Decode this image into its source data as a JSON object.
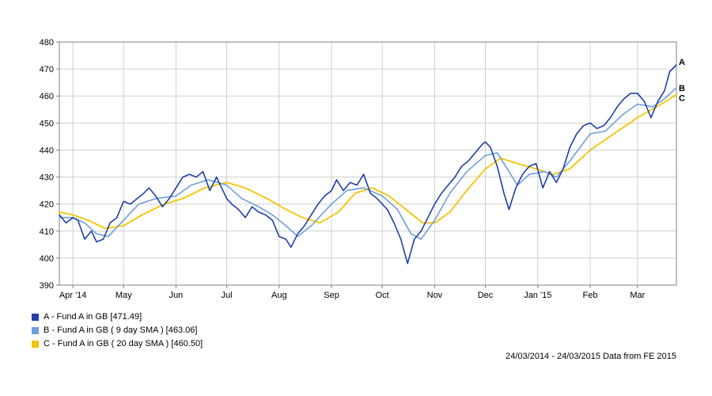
{
  "chart_data": {
    "type": "line",
    "ylim": [
      390,
      480
    ],
    "yticks": [
      390,
      400,
      410,
      420,
      430,
      440,
      450,
      460,
      470,
      480
    ],
    "x_range": [
      "2014-03-24",
      "2015-03-24"
    ],
    "x_ticks": [
      {
        "label": "Apr '14",
        "date": "2014-04-01"
      },
      {
        "label": "May",
        "date": "2014-05-01"
      },
      {
        "label": "Jun",
        "date": "2014-06-01"
      },
      {
        "label": "Jul",
        "date": "2014-07-01"
      },
      {
        "label": "Aug",
        "date": "2014-08-01"
      },
      {
        "label": "Sep",
        "date": "2014-09-01"
      },
      {
        "label": "Oct",
        "date": "2014-10-01"
      },
      {
        "label": "Nov",
        "date": "2014-11-01"
      },
      {
        "label": "Dec",
        "date": "2014-12-01"
      },
      {
        "label": "Jan '15",
        "date": "2015-01-01"
      },
      {
        "label": "Feb",
        "date": "2015-02-01"
      },
      {
        "label": "Mar",
        "date": "2015-03-01"
      }
    ],
    "grid": true,
    "legend_position": "bottom-left",
    "series": [
      {
        "id": "A",
        "end_label": "A",
        "legend": "A - Fund A  in GB [471.49]",
        "color": "#1f3fa6",
        "width": 1.6,
        "points": [
          [
            "2014-03-24",
            416
          ],
          [
            "2014-03-28",
            413
          ],
          [
            "2014-04-01",
            415
          ],
          [
            "2014-04-04",
            414
          ],
          [
            "2014-04-08",
            407
          ],
          [
            "2014-04-12",
            410
          ],
          [
            "2014-04-15",
            406
          ],
          [
            "2014-04-19",
            407
          ],
          [
            "2014-04-23",
            413
          ],
          [
            "2014-04-27",
            415
          ],
          [
            "2014-05-01",
            421
          ],
          [
            "2014-05-05",
            420
          ],
          [
            "2014-05-09",
            422
          ],
          [
            "2014-05-13",
            424
          ],
          [
            "2014-05-16",
            426
          ],
          [
            "2014-05-20",
            423
          ],
          [
            "2014-05-24",
            419
          ],
          [
            "2014-05-28",
            422
          ],
          [
            "2014-06-01",
            426
          ],
          [
            "2014-06-05",
            430
          ],
          [
            "2014-06-09",
            431
          ],
          [
            "2014-06-13",
            430
          ],
          [
            "2014-06-17",
            432
          ],
          [
            "2014-06-21",
            425
          ],
          [
            "2014-06-25",
            430
          ],
          [
            "2014-06-28",
            426
          ],
          [
            "2014-07-01",
            422
          ],
          [
            "2014-07-04",
            420
          ],
          [
            "2014-07-08",
            418
          ],
          [
            "2014-07-12",
            415
          ],
          [
            "2014-07-16",
            419
          ],
          [
            "2014-07-20",
            417
          ],
          [
            "2014-07-24",
            416
          ],
          [
            "2014-07-28",
            414
          ],
          [
            "2014-08-01",
            408
          ],
          [
            "2014-08-05",
            407
          ],
          [
            "2014-08-08",
            404
          ],
          [
            "2014-08-12",
            409
          ],
          [
            "2014-08-16",
            412
          ],
          [
            "2014-08-20",
            416
          ],
          [
            "2014-08-24",
            420
          ],
          [
            "2014-08-28",
            423
          ],
          [
            "2014-09-01",
            425
          ],
          [
            "2014-09-04",
            429
          ],
          [
            "2014-09-08",
            425
          ],
          [
            "2014-09-12",
            428
          ],
          [
            "2014-09-16",
            427
          ],
          [
            "2014-09-20",
            431
          ],
          [
            "2014-09-24",
            424
          ],
          [
            "2014-09-28",
            422
          ],
          [
            "2014-10-01",
            420
          ],
          [
            "2014-10-04",
            418
          ],
          [
            "2014-10-08",
            413
          ],
          [
            "2014-10-12",
            407
          ],
          [
            "2014-10-16",
            398
          ],
          [
            "2014-10-20",
            407
          ],
          [
            "2014-10-24",
            410
          ],
          [
            "2014-10-28",
            415
          ],
          [
            "2014-11-01",
            420
          ],
          [
            "2014-11-05",
            424
          ],
          [
            "2014-11-09",
            427
          ],
          [
            "2014-11-13",
            430
          ],
          [
            "2014-11-17",
            434
          ],
          [
            "2014-11-21",
            436
          ],
          [
            "2014-11-25",
            439
          ],
          [
            "2014-11-29",
            442
          ],
          [
            "2014-12-01",
            443
          ],
          [
            "2014-12-04",
            441
          ],
          [
            "2014-12-08",
            434
          ],
          [
            "2014-12-12",
            424
          ],
          [
            "2014-12-15",
            418
          ],
          [
            "2014-12-19",
            426
          ],
          [
            "2014-12-23",
            431
          ],
          [
            "2014-12-27",
            434
          ],
          [
            "2014-12-31",
            435
          ],
          [
            "2015-01-04",
            426
          ],
          [
            "2015-01-08",
            432
          ],
          [
            "2015-01-12",
            428
          ],
          [
            "2015-01-16",
            433
          ],
          [
            "2015-01-20",
            441
          ],
          [
            "2015-01-24",
            446
          ],
          [
            "2015-01-28",
            449
          ],
          [
            "2015-02-01",
            450
          ],
          [
            "2015-02-05",
            448
          ],
          [
            "2015-02-09",
            449
          ],
          [
            "2015-02-13",
            452
          ],
          [
            "2015-02-17",
            456
          ],
          [
            "2015-02-21",
            459
          ],
          [
            "2015-02-25",
            461
          ],
          [
            "2015-03-01",
            461
          ],
          [
            "2015-03-05",
            458
          ],
          [
            "2015-03-09",
            452
          ],
          [
            "2015-03-13",
            458
          ],
          [
            "2015-03-17",
            462
          ],
          [
            "2015-03-20",
            469
          ],
          [
            "2015-03-24",
            471.49
          ]
        ]
      },
      {
        "id": "B",
        "end_label": "B",
        "legend": "B - Fund A  in GB ( 9 day SMA ) [463.06]",
        "color": "#6f9fd8",
        "width": 1.6,
        "points": [
          [
            "2014-03-24",
            415
          ],
          [
            "2014-04-01",
            415
          ],
          [
            "2014-04-08",
            413
          ],
          [
            "2014-04-15",
            409
          ],
          [
            "2014-04-22",
            408
          ],
          [
            "2014-05-01",
            414
          ],
          [
            "2014-05-10",
            420
          ],
          [
            "2014-05-20",
            422
          ],
          [
            "2014-06-01",
            423
          ],
          [
            "2014-06-10",
            427
          ],
          [
            "2014-06-20",
            429
          ],
          [
            "2014-07-01",
            427
          ],
          [
            "2014-07-10",
            422
          ],
          [
            "2014-07-20",
            419
          ],
          [
            "2014-07-28",
            416
          ],
          [
            "2014-08-05",
            412
          ],
          [
            "2014-08-12",
            408
          ],
          [
            "2014-08-20",
            412
          ],
          [
            "2014-09-01",
            420
          ],
          [
            "2014-09-10",
            425
          ],
          [
            "2014-09-20",
            426
          ],
          [
            "2014-10-01",
            423
          ],
          [
            "2014-10-10",
            418
          ],
          [
            "2014-10-18",
            409
          ],
          [
            "2014-10-24",
            407
          ],
          [
            "2014-11-01",
            414
          ],
          [
            "2014-11-10",
            424
          ],
          [
            "2014-11-20",
            432
          ],
          [
            "2014-12-01",
            438
          ],
          [
            "2014-12-08",
            439
          ],
          [
            "2014-12-15",
            432
          ],
          [
            "2014-12-20",
            427
          ],
          [
            "2014-12-27",
            431
          ],
          [
            "2015-01-05",
            432
          ],
          [
            "2015-01-12",
            430
          ],
          [
            "2015-01-20",
            436
          ],
          [
            "2015-02-01",
            446
          ],
          [
            "2015-02-10",
            447
          ],
          [
            "2015-02-20",
            453
          ],
          [
            "2015-03-01",
            457
          ],
          [
            "2015-03-10",
            456
          ],
          [
            "2015-03-17",
            459
          ],
          [
            "2015-03-24",
            463.06
          ]
        ]
      },
      {
        "id": "C",
        "end_label": "C",
        "legend": "C - Fund A  in GB ( 20 day SMA ) [460.50]",
        "color": "#f5c400",
        "width": 1.8,
        "points": [
          [
            "2014-03-24",
            417
          ],
          [
            "2014-04-01",
            416
          ],
          [
            "2014-04-10",
            414
          ],
          [
            "2014-04-20",
            411
          ],
          [
            "2014-05-01",
            412
          ],
          [
            "2014-05-12",
            416
          ],
          [
            "2014-05-25",
            420
          ],
          [
            "2014-06-05",
            422
          ],
          [
            "2014-06-18",
            426
          ],
          [
            "2014-07-01",
            428
          ],
          [
            "2014-07-12",
            426
          ],
          [
            "2014-07-25",
            422
          ],
          [
            "2014-08-05",
            418
          ],
          [
            "2014-08-15",
            415
          ],
          [
            "2014-08-25",
            413
          ],
          [
            "2014-09-05",
            417
          ],
          [
            "2014-09-15",
            424
          ],
          [
            "2014-09-25",
            426
          ],
          [
            "2014-10-05",
            423
          ],
          [
            "2014-10-15",
            418
          ],
          [
            "2014-10-25",
            413
          ],
          [
            "2014-11-01",
            413
          ],
          [
            "2014-11-10",
            417
          ],
          [
            "2014-11-20",
            425
          ],
          [
            "2014-12-01",
            433
          ],
          [
            "2014-12-10",
            437
          ],
          [
            "2014-12-20",
            435
          ],
          [
            "2014-12-31",
            433
          ],
          [
            "2015-01-10",
            431
          ],
          [
            "2015-01-20",
            433
          ],
          [
            "2015-02-01",
            440
          ],
          [
            "2015-02-15",
            446
          ],
          [
            "2015-03-01",
            452
          ],
          [
            "2015-03-15",
            457
          ],
          [
            "2015-03-24",
            460.5
          ]
        ]
      }
    ]
  },
  "legend": [
    {
      "text": "A - Fund A  in GB [471.49]",
      "color": "#1f3fa6"
    },
    {
      "text": "B - Fund A  in GB ( 9 day SMA ) [463.06]",
      "color": "#6f9fd8"
    },
    {
      "text": "C - Fund A  in GB ( 20 day SMA ) [460.50]",
      "color": "#f5c400"
    }
  ],
  "footer_note": "24/03/2014 - 24/03/2015 Data from FE 2015"
}
